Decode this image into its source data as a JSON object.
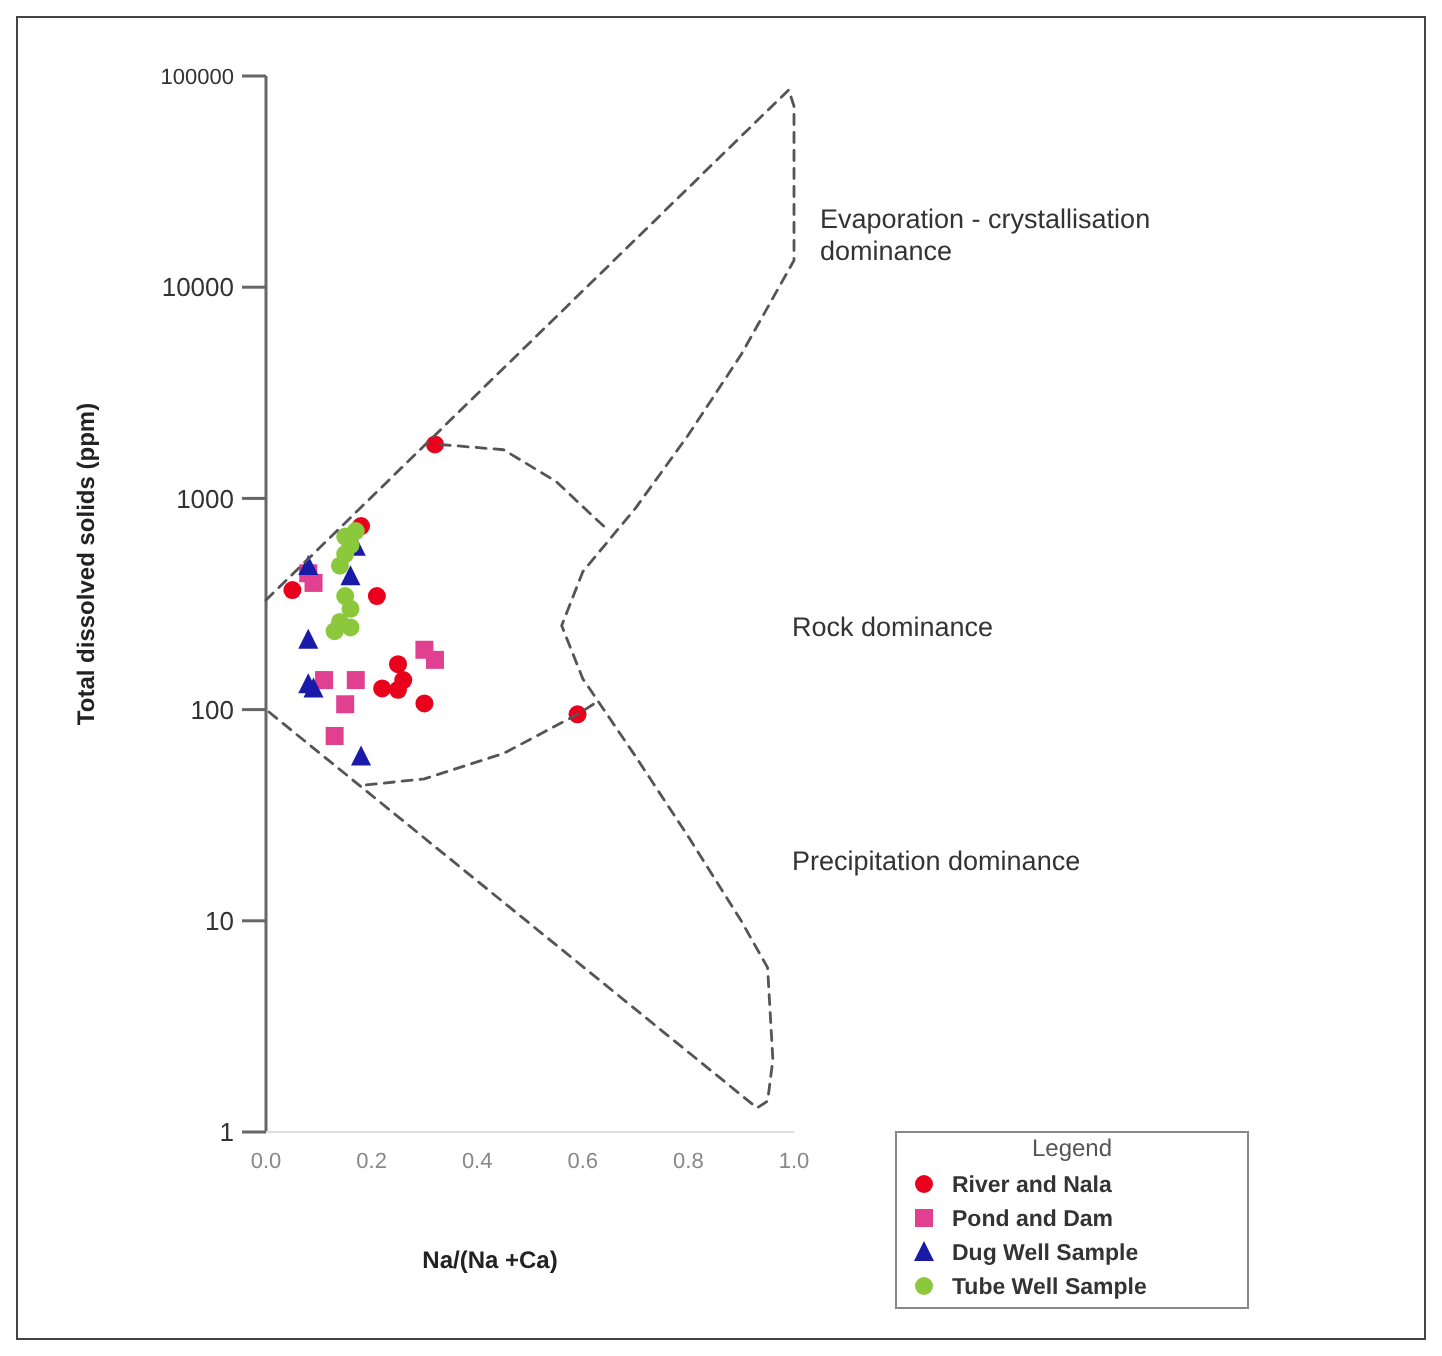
{
  "chart_data": {
    "type": "scatter",
    "xlabel": "Na/(Na +Ca)",
    "ylabel": "Total dissolved solids (ppm)",
    "legend_title": "Legend",
    "legend": "bottom right",
    "log": "y",
    "xlim": [
      0,
      1
    ],
    "xticks": [
      {
        "value": 0,
        "label": "0.0"
      },
      {
        "value": 0.2,
        "label": "0.2"
      },
      {
        "value": 0.4,
        "label": "0.4"
      },
      {
        "value": 0.6,
        "label": "0.6"
      },
      {
        "value": 0.8,
        "label": "0.8"
      },
      {
        "value": 1,
        "label": "1.0"
      }
    ],
    "ylim": [
      1,
      100000
    ],
    "yticks": [
      1,
      10,
      100,
      1000,
      10000,
      100000
    ],
    "annotations": [
      "Evaporation - crystallisation\ndominance",
      "Rock dominance",
      "Precipitation dominance"
    ],
    "series": [
      {
        "name": "River and Nala",
        "color": "#e8001c",
        "marker": "circle",
        "x": [
          0.05,
          0.21,
          0.25,
          0.26,
          0.25,
          0.22,
          0.3,
          0.59,
          0.32,
          0.18
        ],
        "values": [
          368,
          345,
          164,
          138,
          124,
          126,
          107,
          95,
          1800,
          740
        ]
      },
      {
        "name": "Pond and Dam",
        "color": "#e0408f",
        "marker": "square",
        "x": [
          0.08,
          0.09,
          0.17,
          0.15,
          0.13,
          0.32,
          0.3,
          0.11
        ],
        "values": [
          442,
          398,
          138,
          106,
          75,
          172,
          192,
          138
        ]
      },
      {
        "name": "Dug Well Sample",
        "color": "#1a1aa8",
        "marker": "triangle",
        "x": [
          0.08,
          0.16,
          0.08,
          0.08,
          0.09,
          0.18,
          0.17
        ],
        "values": [
          478,
          428,
          214,
          132,
          126,
          60,
          590
        ]
      },
      {
        "name": "Tube Well Sample",
        "color": "#8cc83c",
        "marker": "circle",
        "x": [
          0.15,
          0.17,
          0.16,
          0.15,
          0.15,
          0.16,
          0.14,
          0.13,
          0.16,
          0.14
        ],
        "values": [
          660,
          700,
          600,
          545,
          345,
          300,
          260,
          235,
          245,
          480
        ]
      },
      {
        "type": "line",
        "color": "#555555",
        "line_style": "dashed",
        "marker": "none",
        "x": [
          0,
          0.99,
          1.0,
          1.0,
          1.0,
          0.9,
          0.8,
          0.7,
          0.6,
          0.56,
          0.6,
          0.7,
          0.8,
          0.9,
          0.95,
          0.96,
          0.95,
          0.93,
          0
        ],
        "values": [
          330,
          86000,
          72000,
          30000,
          13400,
          4800,
          2000,
          900,
          450,
          250,
          140,
          60,
          25,
          10,
          6,
          2.2,
          1.4,
          1.3,
          100
        ]
      },
      {
        "type": "line",
        "color": "#555555",
        "line_style": "dashed",
        "marker": "none",
        "x": [
          0.33,
          0.45,
          0.55,
          0.62,
          0.65
        ],
        "values": [
          1800,
          1700,
          1200,
          820,
          700
        ]
      },
      {
        "type": "line",
        "color": "#555555",
        "line_style": "dashed",
        "marker": "none",
        "x": [
          0.19,
          0.3,
          0.45,
          0.59,
          0.63
        ],
        "values": [
          44,
          47,
          62,
          95,
          110
        ]
      }
    ]
  }
}
